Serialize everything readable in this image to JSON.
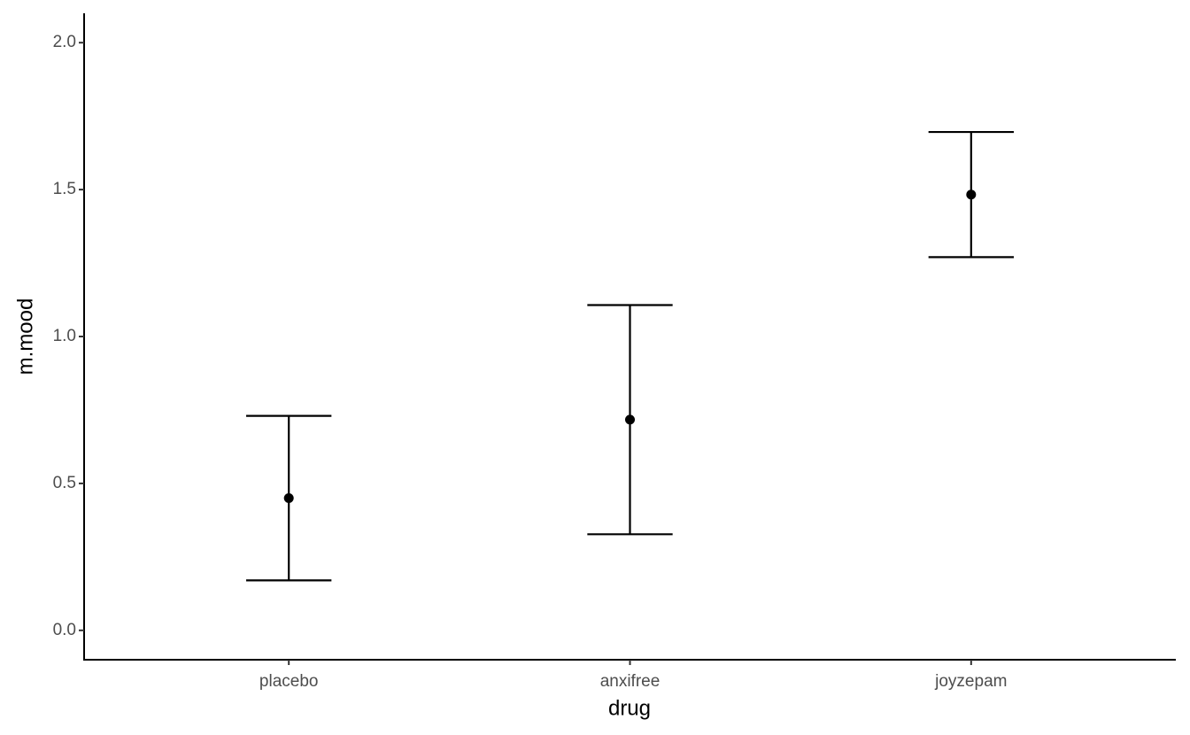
{
  "chart_data": {
    "type": "errorbar",
    "x_label": "drug",
    "y_label": "m.mood",
    "categories": [
      "placebo",
      "anxifree",
      "joyzepam"
    ],
    "values": [
      0.45,
      0.717,
      1.483
    ],
    "errors": [
      0.28,
      0.39,
      0.213
    ],
    "color": "#000000",
    "ylim": [
      -0.1,
      2.1
    ],
    "yticks": [
      {
        "value": 0,
        "label": "0.0"
      },
      0.5,
      {
        "value": 1,
        "label": "1.0"
      },
      1.5,
      {
        "value": 2,
        "label": "2.0"
      }
    ]
  }
}
